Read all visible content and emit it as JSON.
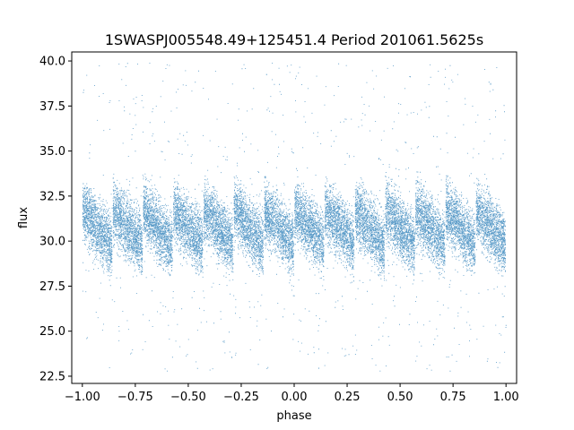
{
  "chart_data": {
    "type": "scatter",
    "title": "1SWASPJ005548.49+125451.4 Period 201061.5625s",
    "xlabel": "phase",
    "ylabel": "flux",
    "xlim": [
      -1.05,
      1.05
    ],
    "ylim": [
      22.1,
      40.5
    ],
    "xticks": [
      -1.0,
      -0.75,
      -0.5,
      -0.25,
      0.0,
      0.25,
      0.5,
      0.75,
      1.0
    ],
    "xtick_labels": [
      "−1.00",
      "−0.75",
      "−0.50",
      "−0.25",
      "0.00",
      "0.25",
      "0.50",
      "0.75",
      "1.00"
    ],
    "yticks": [
      22.5,
      25.0,
      27.5,
      30.0,
      32.5,
      35.0,
      37.5,
      40.0
    ],
    "ytick_labels": [
      "22.5",
      "25.0",
      "27.5",
      "30.0",
      "32.5",
      "35.0",
      "37.5",
      "40.0"
    ],
    "grid": false,
    "point_color": "#1f77b4",
    "phase_range": [
      -1.0,
      1.0
    ],
    "pattern": {
      "cycles": 14,
      "band_top_start": 33.5,
      "band_top_end": 31.5,
      "band_bottom_start": 30.0,
      "band_bottom_end": 28.0,
      "outlier_range": [
        22.8,
        39.9
      ]
    }
  }
}
